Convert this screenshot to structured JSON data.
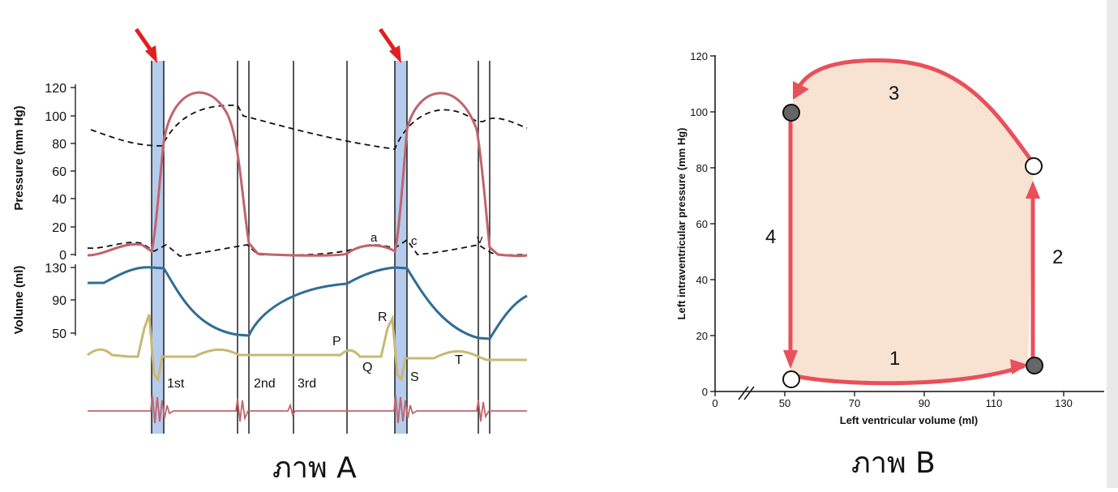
{
  "figure_a": {
    "caption": "ภาพ A",
    "pressure_axis_label": "Pressure (mm Hg)",
    "volume_axis_label": "Volume (ml)",
    "pressure_ticks": [
      "120",
      "100",
      "80",
      "60",
      "40",
      "20",
      "0"
    ],
    "volume_ticks": [
      "130",
      "90",
      "50"
    ],
    "wave_labels": {
      "a": "a",
      "c": "c",
      "v": "v"
    },
    "ecg_labels": {
      "p": "P",
      "q": "Q",
      "r": "R",
      "s": "S",
      "t": "T"
    },
    "heart_sounds": {
      "first": "1st",
      "second": "2nd",
      "third": "3rd"
    },
    "colors": {
      "ventricular_pressure": "#c0646c",
      "aortic_pressure": "#111111",
      "volume": "#2f6d96",
      "ecg": "#c9b873",
      "phonocardiogram": "#c0646c",
      "highlight_band": "#a9c3ea",
      "arrow": "#e02020"
    }
  },
  "figure_b": {
    "caption": "ภาพ B",
    "xlabel": "Left ventricular volume (ml)",
    "ylabel": "Left intraventricular pressure (mm Hg)",
    "x_ticks": [
      "0",
      "50",
      "70",
      "90",
      "110",
      "130"
    ],
    "y_ticks": [
      "0",
      "20",
      "40",
      "60",
      "80",
      "100",
      "120"
    ],
    "phase_labels": [
      "1",
      "2",
      "3",
      "4"
    ],
    "colors": {
      "loop_line": "#e8505b",
      "loop_fill": "#f8e3d2",
      "filled_point": "#666666"
    }
  }
}
